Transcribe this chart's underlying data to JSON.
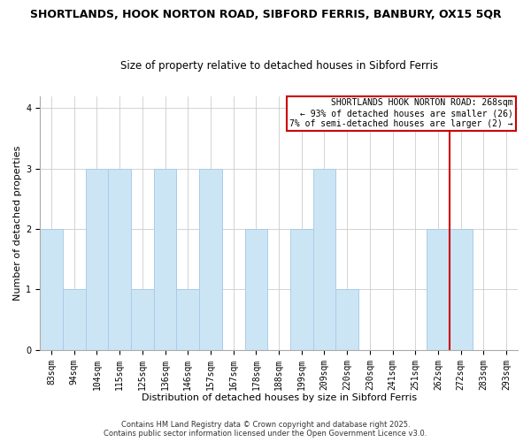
{
  "title": "SHORTLANDS, HOOK NORTON ROAD, SIBFORD FERRIS, BANBURY, OX15 5QR",
  "subtitle": "Size of property relative to detached houses in Sibford Ferris",
  "xlabel": "Distribution of detached houses by size in Sibford Ferris",
  "ylabel": "Number of detached properties",
  "bins": [
    "83sqm",
    "94sqm",
    "104sqm",
    "115sqm",
    "125sqm",
    "136sqm",
    "146sqm",
    "157sqm",
    "167sqm",
    "178sqm",
    "188sqm",
    "199sqm",
    "209sqm",
    "220sqm",
    "230sqm",
    "241sqm",
    "251sqm",
    "262sqm",
    "272sqm",
    "283sqm",
    "293sqm"
  ],
  "values": [
    2,
    1,
    3,
    3,
    1,
    3,
    1,
    3,
    0,
    2,
    0,
    2,
    3,
    1,
    0,
    0,
    0,
    2,
    2,
    0,
    0
  ],
  "bar_color": "#cce5f5",
  "bar_edge_color": "#aacce8",
  "vline_x": 17.5,
  "vline_color": "#cc0000",
  "annotation_title": "SHORTLANDS HOOK NORTON ROAD: 268sqm",
  "annotation_line1": "← 93% of detached houses are smaller (26)",
  "annotation_line2": "7% of semi-detached houses are larger (2) →",
  "annotation_box_color": "#ffffff",
  "annotation_border_color": "#cc0000",
  "ylim": [
    0,
    4.2
  ],
  "yticks": [
    0,
    1,
    2,
    3,
    4
  ],
  "footer1": "Contains HM Land Registry data © Crown copyright and database right 2025.",
  "footer2": "Contains public sector information licensed under the Open Government Licence v3.0.",
  "title_fontsize": 9,
  "subtitle_fontsize": 8.5,
  "xlabel_fontsize": 8,
  "ylabel_fontsize": 8,
  "tick_fontsize": 7,
  "annotation_fontsize": 7,
  "footer_fontsize": 6
}
